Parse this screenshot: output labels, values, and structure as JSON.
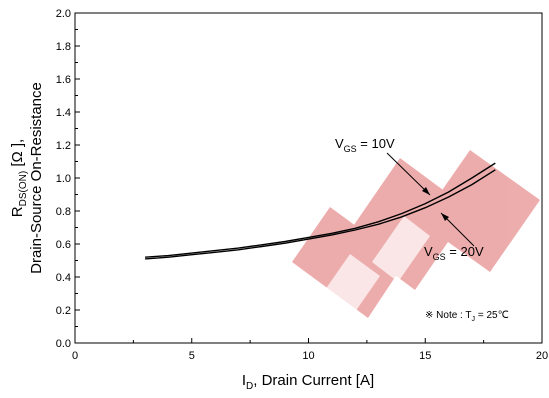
{
  "chart_data": {
    "type": "line",
    "xlabel": {
      "main": "I",
      "sub": "D",
      "rest": ", Drain Current [A]"
    },
    "ylabel": {
      "line1_main": "R",
      "line1_sub": "DS(ON)",
      "line1_rest": " [Ω ],",
      "line2": "Drain-Source On-Resistance"
    },
    "xlim": [
      0,
      20
    ],
    "ylim": [
      0.0,
      2.0
    ],
    "x_ticks": [
      "0",
      "5",
      "10",
      "15",
      "20"
    ],
    "y_ticks": [
      "0.0",
      "0.2",
      "0.4",
      "0.6",
      "0.8",
      "1.0",
      "1.2",
      "1.4",
      "1.6",
      "1.8",
      "2.0"
    ],
    "series": [
      {
        "name": "VGS = 10V",
        "color": "#000000",
        "x": [
          3,
          4,
          5,
          6,
          7,
          8,
          9,
          10,
          11,
          12,
          13,
          14,
          15,
          16,
          17,
          18
        ],
        "y": [
          0.52,
          0.53,
          0.545,
          0.56,
          0.575,
          0.595,
          0.615,
          0.64,
          0.665,
          0.695,
          0.735,
          0.785,
          0.845,
          0.915,
          1.0,
          1.09
        ]
      },
      {
        "name": "VGS = 20V",
        "color": "#000000",
        "x": [
          3,
          4,
          5,
          6,
          7,
          8,
          9,
          10,
          11,
          12,
          13,
          14,
          15,
          16,
          17,
          18
        ],
        "y": [
          0.51,
          0.52,
          0.535,
          0.55,
          0.565,
          0.585,
          0.605,
          0.63,
          0.655,
          0.685,
          0.72,
          0.765,
          0.82,
          0.885,
          0.96,
          1.05
        ]
      }
    ],
    "annotations": [
      {
        "main": "V",
        "sub": "GS",
        "rest": " = 10V"
      },
      {
        "main": "V",
        "sub": "GS",
        "rest": " = 20V"
      }
    ],
    "note": {
      "prefix": "※ Note : T",
      "sub": "J",
      "rest": " = 25℃"
    },
    "watermark_color": "#e06a6a"
  }
}
